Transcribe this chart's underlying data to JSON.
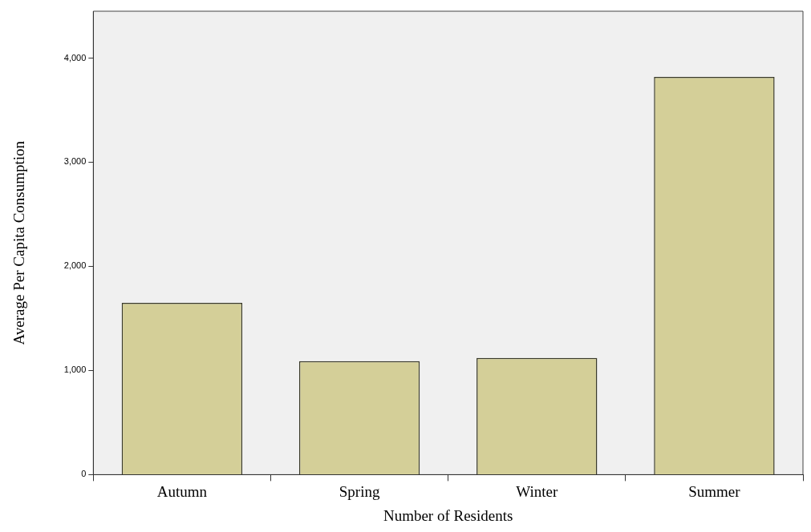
{
  "chart_data": {
    "type": "bar",
    "xlabel": "Number of Residents",
    "ylabel": "Average Per Capita Consumption",
    "categories": [
      "Autumn",
      "Spring",
      "Winter",
      "Summer"
    ],
    "values": [
      1650,
      1090,
      1120,
      3820
    ],
    "color": "#d4cf98",
    "ylim": [
      0,
      4450
    ],
    "yticks": [
      {
        "value": 0,
        "label": "0"
      },
      {
        "value": 1000,
        "label": "1,000"
      },
      {
        "value": 2000,
        "label": "2,000"
      },
      {
        "value": 3000,
        "label": "3,000"
      },
      {
        "value": 4000,
        "label": "4,000"
      }
    ],
    "grid": false,
    "legend": false
  }
}
